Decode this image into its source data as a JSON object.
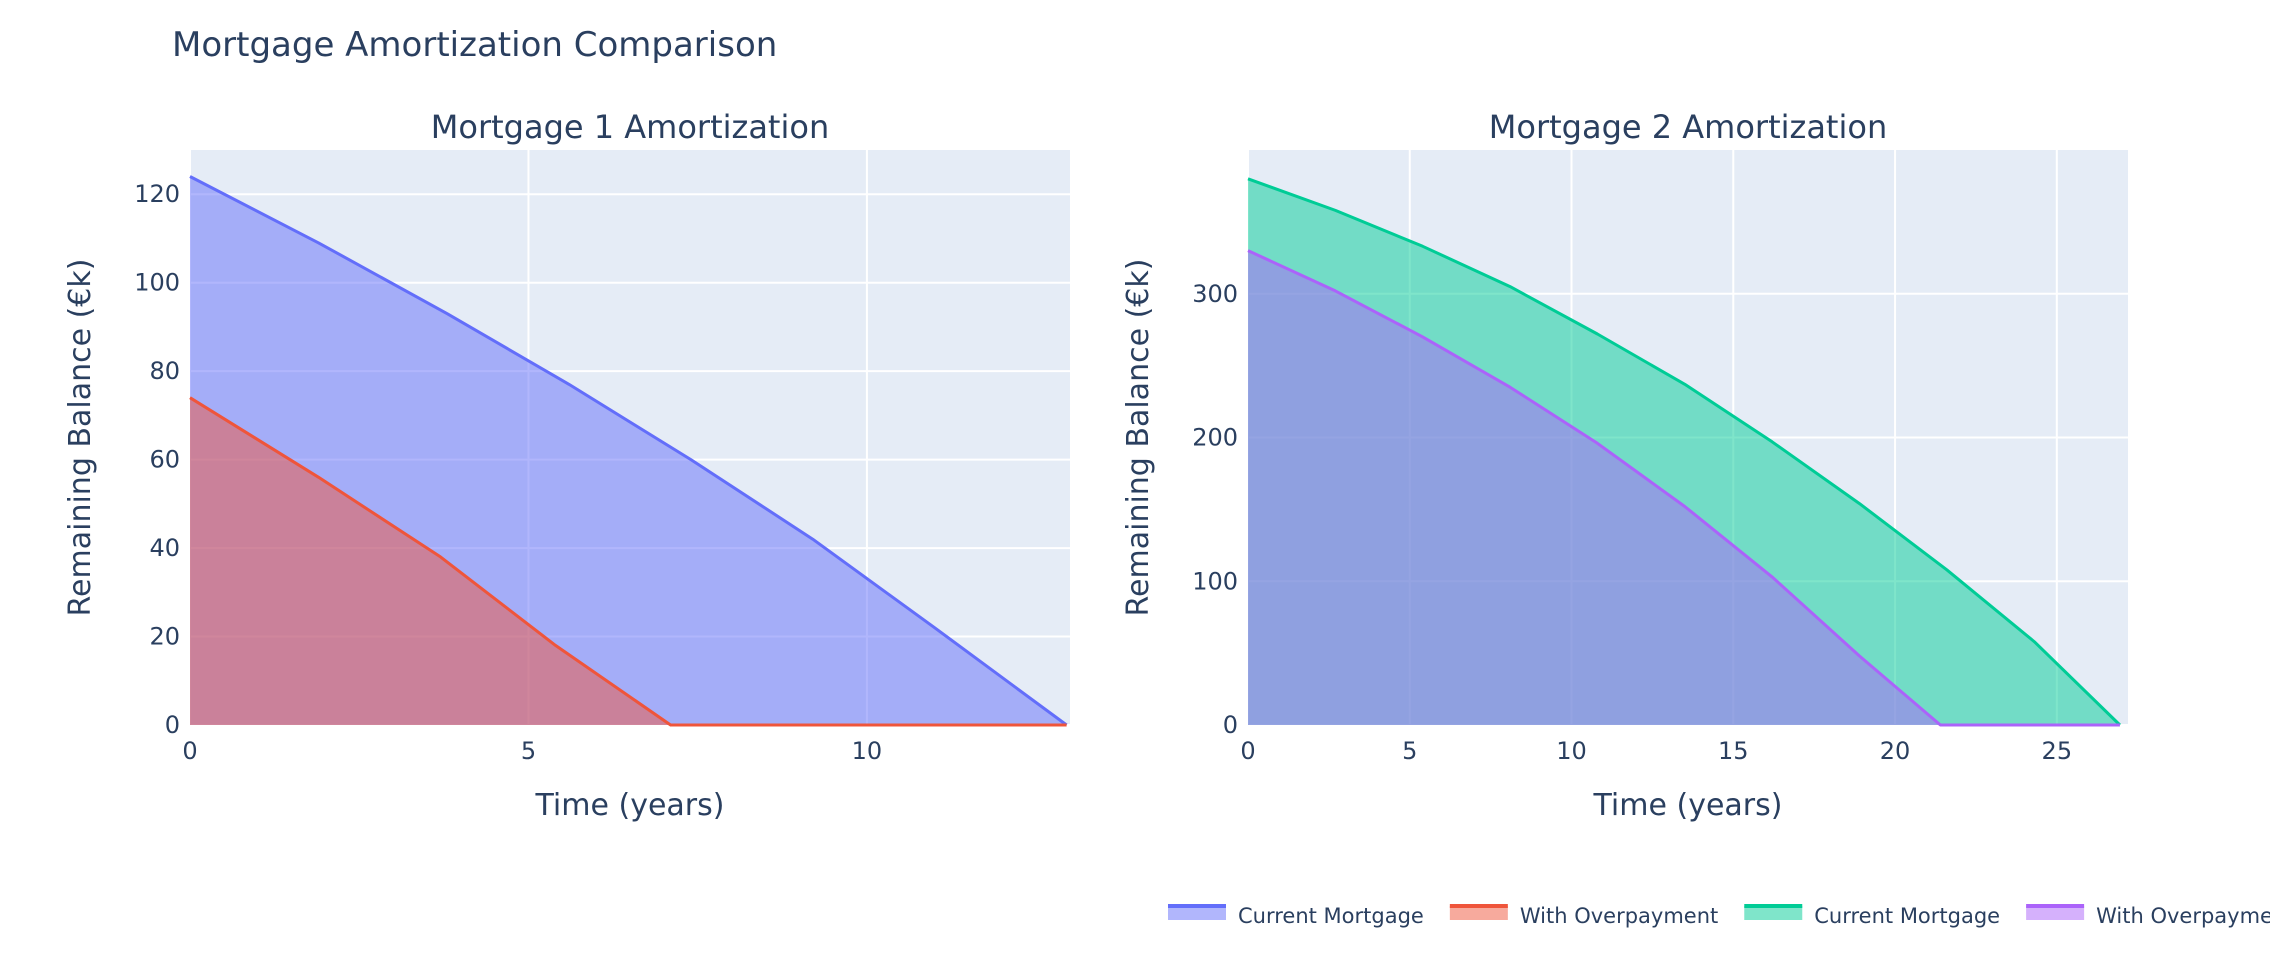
{
  "title": "Mortgage Amortization Comparison",
  "colors": {
    "plot_bg": "#E5ECF6",
    "grid": "#ffffff",
    "text": "#2a3f5f",
    "blue": "#636EFA",
    "red": "#EF553B",
    "green": "#00CC96",
    "purple": "#AB63FA"
  },
  "legend": {
    "placement": "bottom-right",
    "items": [
      {
        "label": "Current Mortgage",
        "color": "#636EFA"
      },
      {
        "label": "With Overpayment",
        "color": "#EF553B"
      },
      {
        "label": "Current Mortgage",
        "color": "#00CC96"
      },
      {
        "label": "With Overpayment",
        "color": "#AB63FA"
      }
    ]
  },
  "chart_data": [
    {
      "type": "area",
      "title": "Mortgage 1 Amortization",
      "xlabel": "Time (years)",
      "ylabel": "Remaining Balance (€k)",
      "xlim": [
        0,
        13
      ],
      "ylim": [
        0,
        130
      ],
      "xticks": [
        0,
        5,
        10
      ],
      "yticks": [
        0,
        20,
        40,
        60,
        80,
        100,
        120
      ],
      "grid": true,
      "series": [
        {
          "name": "Current Mortgage",
          "color": "#636EFA",
          "x": [
            0,
            1.9,
            3.8,
            5.6,
            7.4,
            9.2,
            11.0,
            12.95
          ],
          "y": [
            124,
            109,
            93,
            77,
            60,
            42,
            22,
            0
          ]
        },
        {
          "name": "With Overpayment",
          "color": "#EF553B",
          "x": [
            0,
            1.9,
            3.7,
            5.4,
            7.1,
            8.5,
            10.5,
            12.95
          ],
          "y": [
            74,
            56,
            38,
            18,
            0,
            0,
            0,
            0
          ]
        }
      ]
    },
    {
      "type": "area",
      "title": "Mortgage 2 Amortization",
      "xlabel": "Time (years)",
      "ylabel": "Remaining Balance (€k)",
      "xlim": [
        0,
        27.2
      ],
      "ylim": [
        0,
        400
      ],
      "xticks": [
        0,
        5,
        10,
        15,
        20,
        25
      ],
      "yticks": [
        0,
        100,
        200,
        300
      ],
      "grid": true,
      "series": [
        {
          "name": "Current Mortgage",
          "color": "#00CC96",
          "x": [
            0,
            2.7,
            5.4,
            8.1,
            10.8,
            13.5,
            16.2,
            18.9,
            21.6,
            24.3,
            26.95
          ],
          "y": [
            380,
            358,
            333,
            305,
            272,
            237,
            197,
            154,
            108,
            58,
            0
          ]
        },
        {
          "name": "With Overpayment",
          "color": "#AB63FA",
          "x": [
            0,
            2.7,
            5.4,
            8.1,
            10.8,
            13.5,
            16.2,
            18.9,
            21.4,
            24.0,
            26.95
          ],
          "y": [
            330,
            302,
            270,
            235,
            196,
            152,
            103,
            48,
            0,
            0,
            0
          ]
        }
      ]
    }
  ]
}
